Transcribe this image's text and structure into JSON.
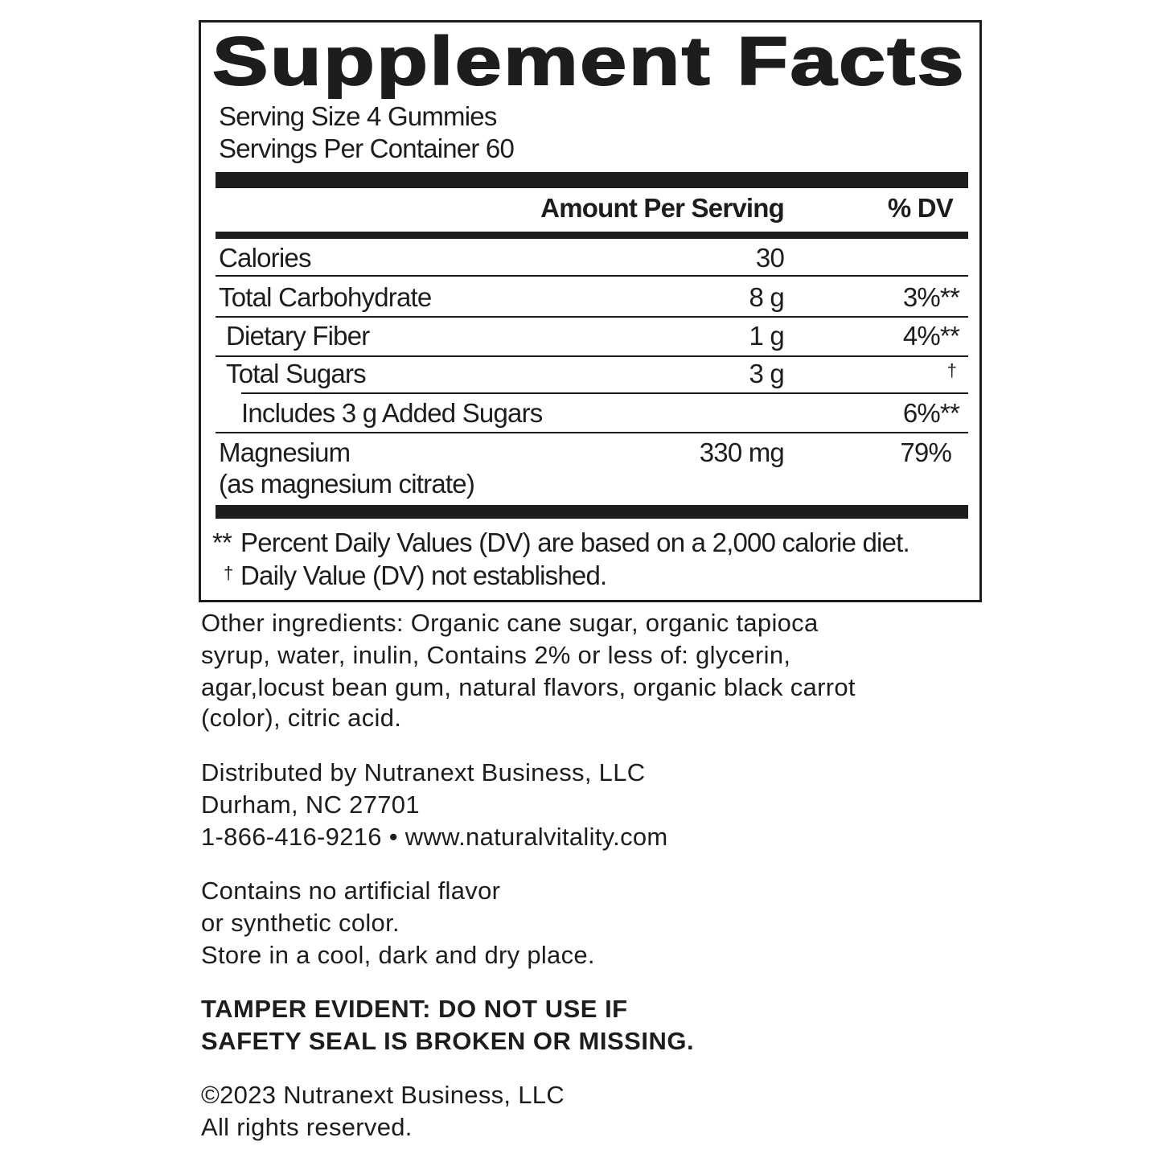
{
  "label": {
    "title": "Supplement Facts",
    "serving_size": "Serving Size 4 Gummies",
    "servings_per_container": "Servings Per Container 60",
    "header_amount": "Amount Per Serving",
    "header_dv": "% DV",
    "rows": [
      {
        "name": "Calories",
        "amount": "30",
        "dv": ""
      },
      {
        "name": "Total Carbohydrate",
        "amount": "8 g",
        "dv": "3%**"
      },
      {
        "name": "Dietary Fiber",
        "amount": "1 g",
        "dv": "4%**"
      },
      {
        "name": "Total Sugars",
        "amount": "3 g",
        "dv": "†"
      },
      {
        "name": "Includes 3 g Added Sugars",
        "amount": "",
        "dv": "6%**"
      },
      {
        "name": "Magnesium",
        "sub": "(as magnesium citrate)",
        "amount": "330 mg",
        "dv": "79%"
      }
    ],
    "footnote1_mark": "**",
    "footnote1": "Percent Daily Values (DV) are based on a 2,000 calorie diet.",
    "footnote2_mark": "†",
    "footnote2": "Daily Value (DV) not established."
  },
  "ingredients": [
    "Other ingredients: Organic cane sugar, organic tapioca",
    "syrup, water, inulin, Contains 2% or less of: glycerin,",
    "agar,locust bean gum, natural flavors, organic black carrot",
    "(color), citric acid."
  ],
  "distributor": [
    "Distributed by Nutranext Business, LLC",
    "Durham, NC 27701",
    "1-866-416-9216 • www.naturalvitality.com"
  ],
  "claims": [
    "Contains no artificial flavor",
    "or synthetic color.",
    "Store in a cool, dark and dry place."
  ],
  "warning": [
    "TAMPER EVIDENT: DO NOT USE IF",
    "SAFETY SEAL IS BROKEN OR MISSING."
  ],
  "copyright": [
    "©2023 Nutranext Business, LLC",
    "All rights reserved."
  ]
}
